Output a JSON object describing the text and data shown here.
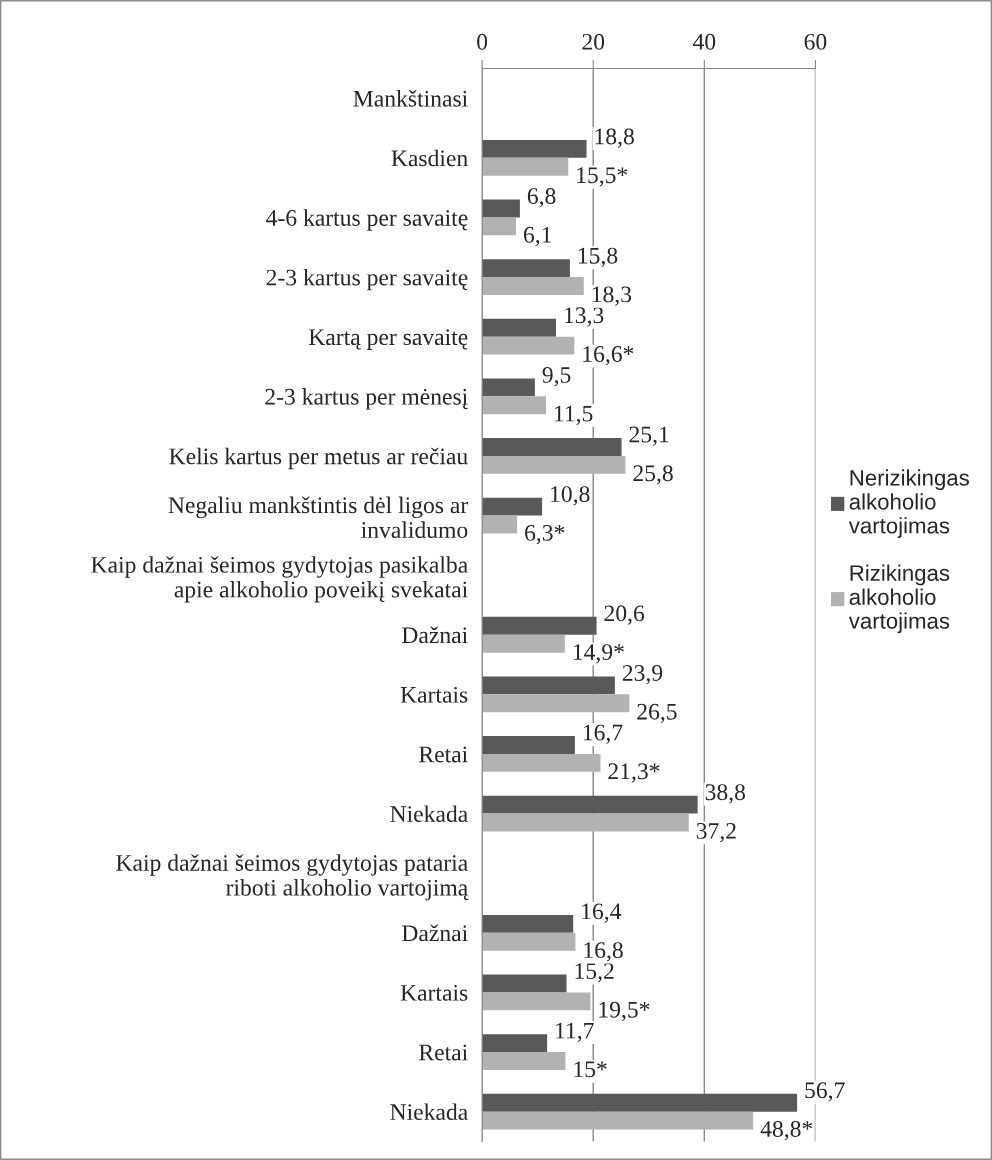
{
  "chart_data": {
    "type": "bar",
    "orientation": "horizontal",
    "categories": [
      "Mankštinasi",
      "Kasdien",
      "4-6 kartus per savaitę",
      "2-3 kartus per savaitę",
      "Kartą per savaitę",
      "2-3 kartus per mėnesį",
      "Kelis kartus per metus ar rečiau",
      "Negaliu mankštintis dėl ligos ar\ninvalidumo",
      "Kaip dažnai šeimos gydytojas pasikalba\napie alkoholio poveikį svekatai",
      "Dažnai",
      "Kartais",
      "Retai",
      "Niekada",
      "Kaip dažnai šeimos gydytojas pataria\nriboti alkoholio vartojimą",
      "Dažnai",
      "Kartais",
      "Retai",
      "Niekada"
    ],
    "series": [
      {
        "name": "Nerizikingas\nalkoholio\nvartojimas",
        "color": "#595959",
        "values": [
          null,
          18.8,
          6.8,
          15.8,
          13.3,
          9.5,
          25.1,
          10.8,
          null,
          20.6,
          23.9,
          16.7,
          38.8,
          null,
          16.4,
          15.2,
          11.7,
          56.7
        ],
        "value_labels": [
          null,
          "18,8",
          "6,8",
          "15,8",
          "13,3",
          "9,5",
          "25,1",
          "10,8",
          null,
          "20,6",
          "23,9",
          "16,7",
          "38,8",
          null,
          "16,4",
          "15,2",
          "11,7",
          "56,7"
        ]
      },
      {
        "name": "Rizikingas\nalkoholio\nvartojimas",
        "color": "#b2b2b2",
        "values": [
          null,
          15.5,
          6.1,
          18.3,
          16.6,
          11.5,
          25.8,
          6.3,
          null,
          14.9,
          26.5,
          21.3,
          37.2,
          null,
          16.8,
          19.5,
          15,
          48.8
        ],
        "value_labels": [
          null,
          "15,5*",
          "6,1",
          "18,3",
          "16,6*",
          "11,5",
          "25,8",
          "6,3*",
          null,
          "14,9*",
          "26,5",
          "21,3*",
          "37,2",
          null,
          "16,8",
          "19,5*",
          "15*",
          "48,8*"
        ]
      }
    ],
    "xlim": [
      0,
      60
    ],
    "xticks": [
      0,
      20,
      40,
      60
    ],
    "grid": "x",
    "legend": "right"
  }
}
